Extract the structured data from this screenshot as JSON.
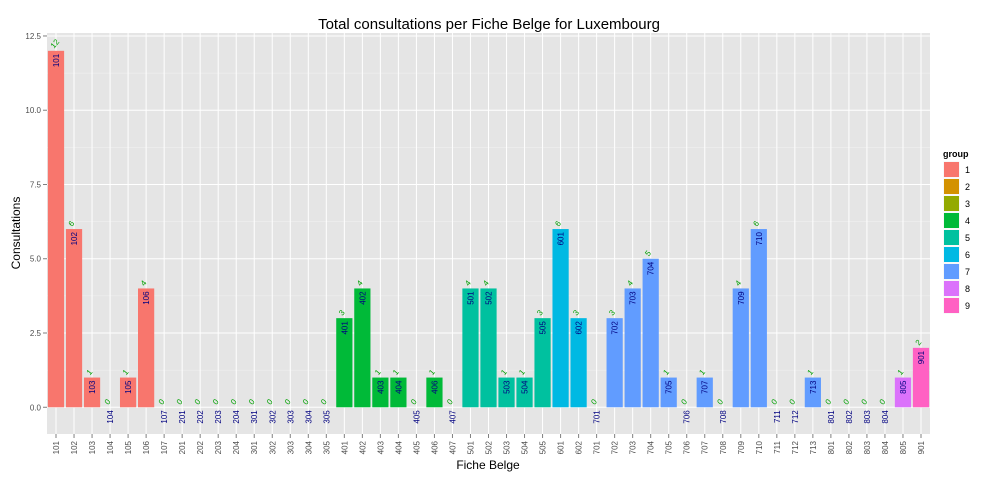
{
  "chart_data": {
    "type": "bar",
    "title": "Total consultations per Fiche Belge for Luxembourg",
    "xlabel": "Fiche Belge",
    "ylabel": "Consultations",
    "ylim": [
      -0.9,
      12.6
    ],
    "yticks": [
      "0.0",
      "2.5",
      "5.0",
      "7.5",
      "10.0",
      "12.5"
    ],
    "grid": true,
    "legend": {
      "title": "group",
      "placement": "right",
      "entries": [
        "1",
        "2",
        "3",
        "4",
        "5",
        "6",
        "7",
        "8",
        "9"
      ]
    },
    "group_colors": {
      "1": "#f8766d",
      "2": "#d39200",
      "3": "#93aa00",
      "4": "#00ba38",
      "5": "#00c19f",
      "6": "#00b9e3",
      "7": "#619cff",
      "8": "#db72fb",
      "9": "#ff61c3"
    },
    "categories": [
      "101",
      "102",
      "103",
      "104",
      "105",
      "106",
      "107",
      "201",
      "202",
      "203",
      "204",
      "301",
      "302",
      "303",
      "304",
      "305",
      "401",
      "402",
      "403",
      "404",
      "405",
      "406",
      "407",
      "501",
      "502",
      "503",
      "504",
      "505",
      "601",
      "602",
      "701",
      "702",
      "703",
      "704",
      "705",
      "706",
      "707",
      "708",
      "709",
      "710",
      "711",
      "712",
      "713",
      "801",
      "802",
      "803",
      "804",
      "805",
      "901"
    ],
    "values": [
      12,
      6,
      1,
      0,
      1,
      4,
      0,
      0,
      0,
      0,
      0,
      0,
      0,
      0,
      0,
      0,
      3,
      4,
      1,
      1,
      0,
      1,
      0,
      4,
      4,
      1,
      1,
      3,
      6,
      3,
      0,
      3,
      4,
      5,
      1,
      0,
      1,
      0,
      4,
      6,
      0,
      0,
      1,
      0,
      0,
      0,
      0,
      1,
      2
    ],
    "groups": [
      "1",
      "1",
      "1",
      "1",
      "1",
      "1",
      "1",
      "2",
      "2",
      "2",
      "2",
      "3",
      "3",
      "3",
      "3",
      "3",
      "4",
      "4",
      "4",
      "4",
      "4",
      "4",
      "4",
      "5",
      "5",
      "5",
      "5",
      "5",
      "6",
      "6",
      "7",
      "7",
      "7",
      "7",
      "7",
      "7",
      "7",
      "7",
      "7",
      "7",
      "7",
      "7",
      "7",
      "8",
      "8",
      "8",
      "8",
      "8",
      "9"
    ]
  }
}
